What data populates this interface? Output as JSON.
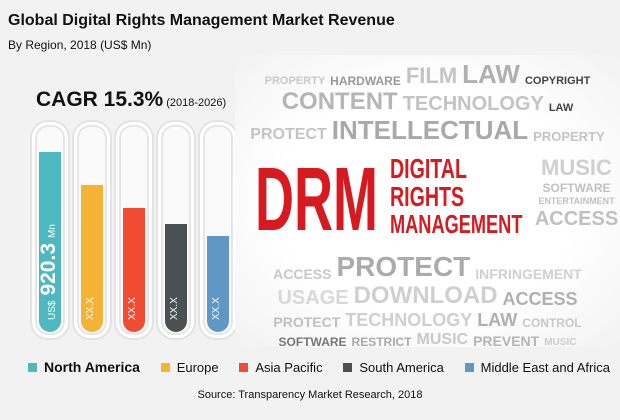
{
  "title": "Global Digital Rights Management Market Revenue",
  "subtitle": "By Region, 2018 (US$ Mn)",
  "cagr": {
    "label": "CAGR 15.3%",
    "period": "(2018-2026)"
  },
  "chart_data": {
    "type": "bar",
    "orientation": "vertical",
    "title": "Global Digital Rights Management Market Revenue",
    "subtitle": "By Region, 2018 (US$ Mn)",
    "categories": [
      "North America",
      "Europe",
      "Asia Pacific",
      "South America",
      "Middle East and Africa"
    ],
    "fill_levels": [
      0.88,
      0.72,
      0.61,
      0.53,
      0.47
    ],
    "data_labels": [
      {
        "prefix": "US$",
        "value": "920.3",
        "unit": "Mn"
      },
      {
        "value": "XX.X"
      },
      {
        "value": "XX.X"
      },
      {
        "value": "XX.X"
      },
      {
        "value": "XX.X"
      }
    ],
    "colors": [
      "#4db8c0",
      "#f5b335",
      "#ef4c33",
      "#4a5152",
      "#5f97c5"
    ],
    "legend_position": "bottom",
    "grid": false
  },
  "legend": [
    "North America",
    "Europe",
    "Asia Pacific",
    "South America",
    "Middle East and Africa"
  ],
  "source": "Source: Transparency Market Research, 2018",
  "cloud": {
    "main": "DRM",
    "line1": "DIGITAL",
    "line2": "RIGHTS",
    "line3": "MANAGEMENT",
    "words": [
      "INTELLECTUAL",
      "PROTECT",
      "LAW",
      "CONTENT",
      "TECHNOLOGY",
      "PROPERTY",
      "MUSIC",
      "FILM",
      "COPYRIGHT",
      "HARDWARE",
      "PROTECT",
      "DOWNLOAD",
      "ACCESS",
      "TECHNOLOGY",
      "SOFTWARE",
      "LAW",
      "USAGE",
      "INFRINGEMENT",
      "RESTRICT",
      "CONTROL",
      "ACCESS",
      "MUSIC",
      "PREVENT",
      "SOFTWARE",
      "ENTERTAINMENT",
      "PROPERTY",
      "ACCESS",
      "LAW",
      "PROTECT",
      "MUSIC"
    ]
  }
}
